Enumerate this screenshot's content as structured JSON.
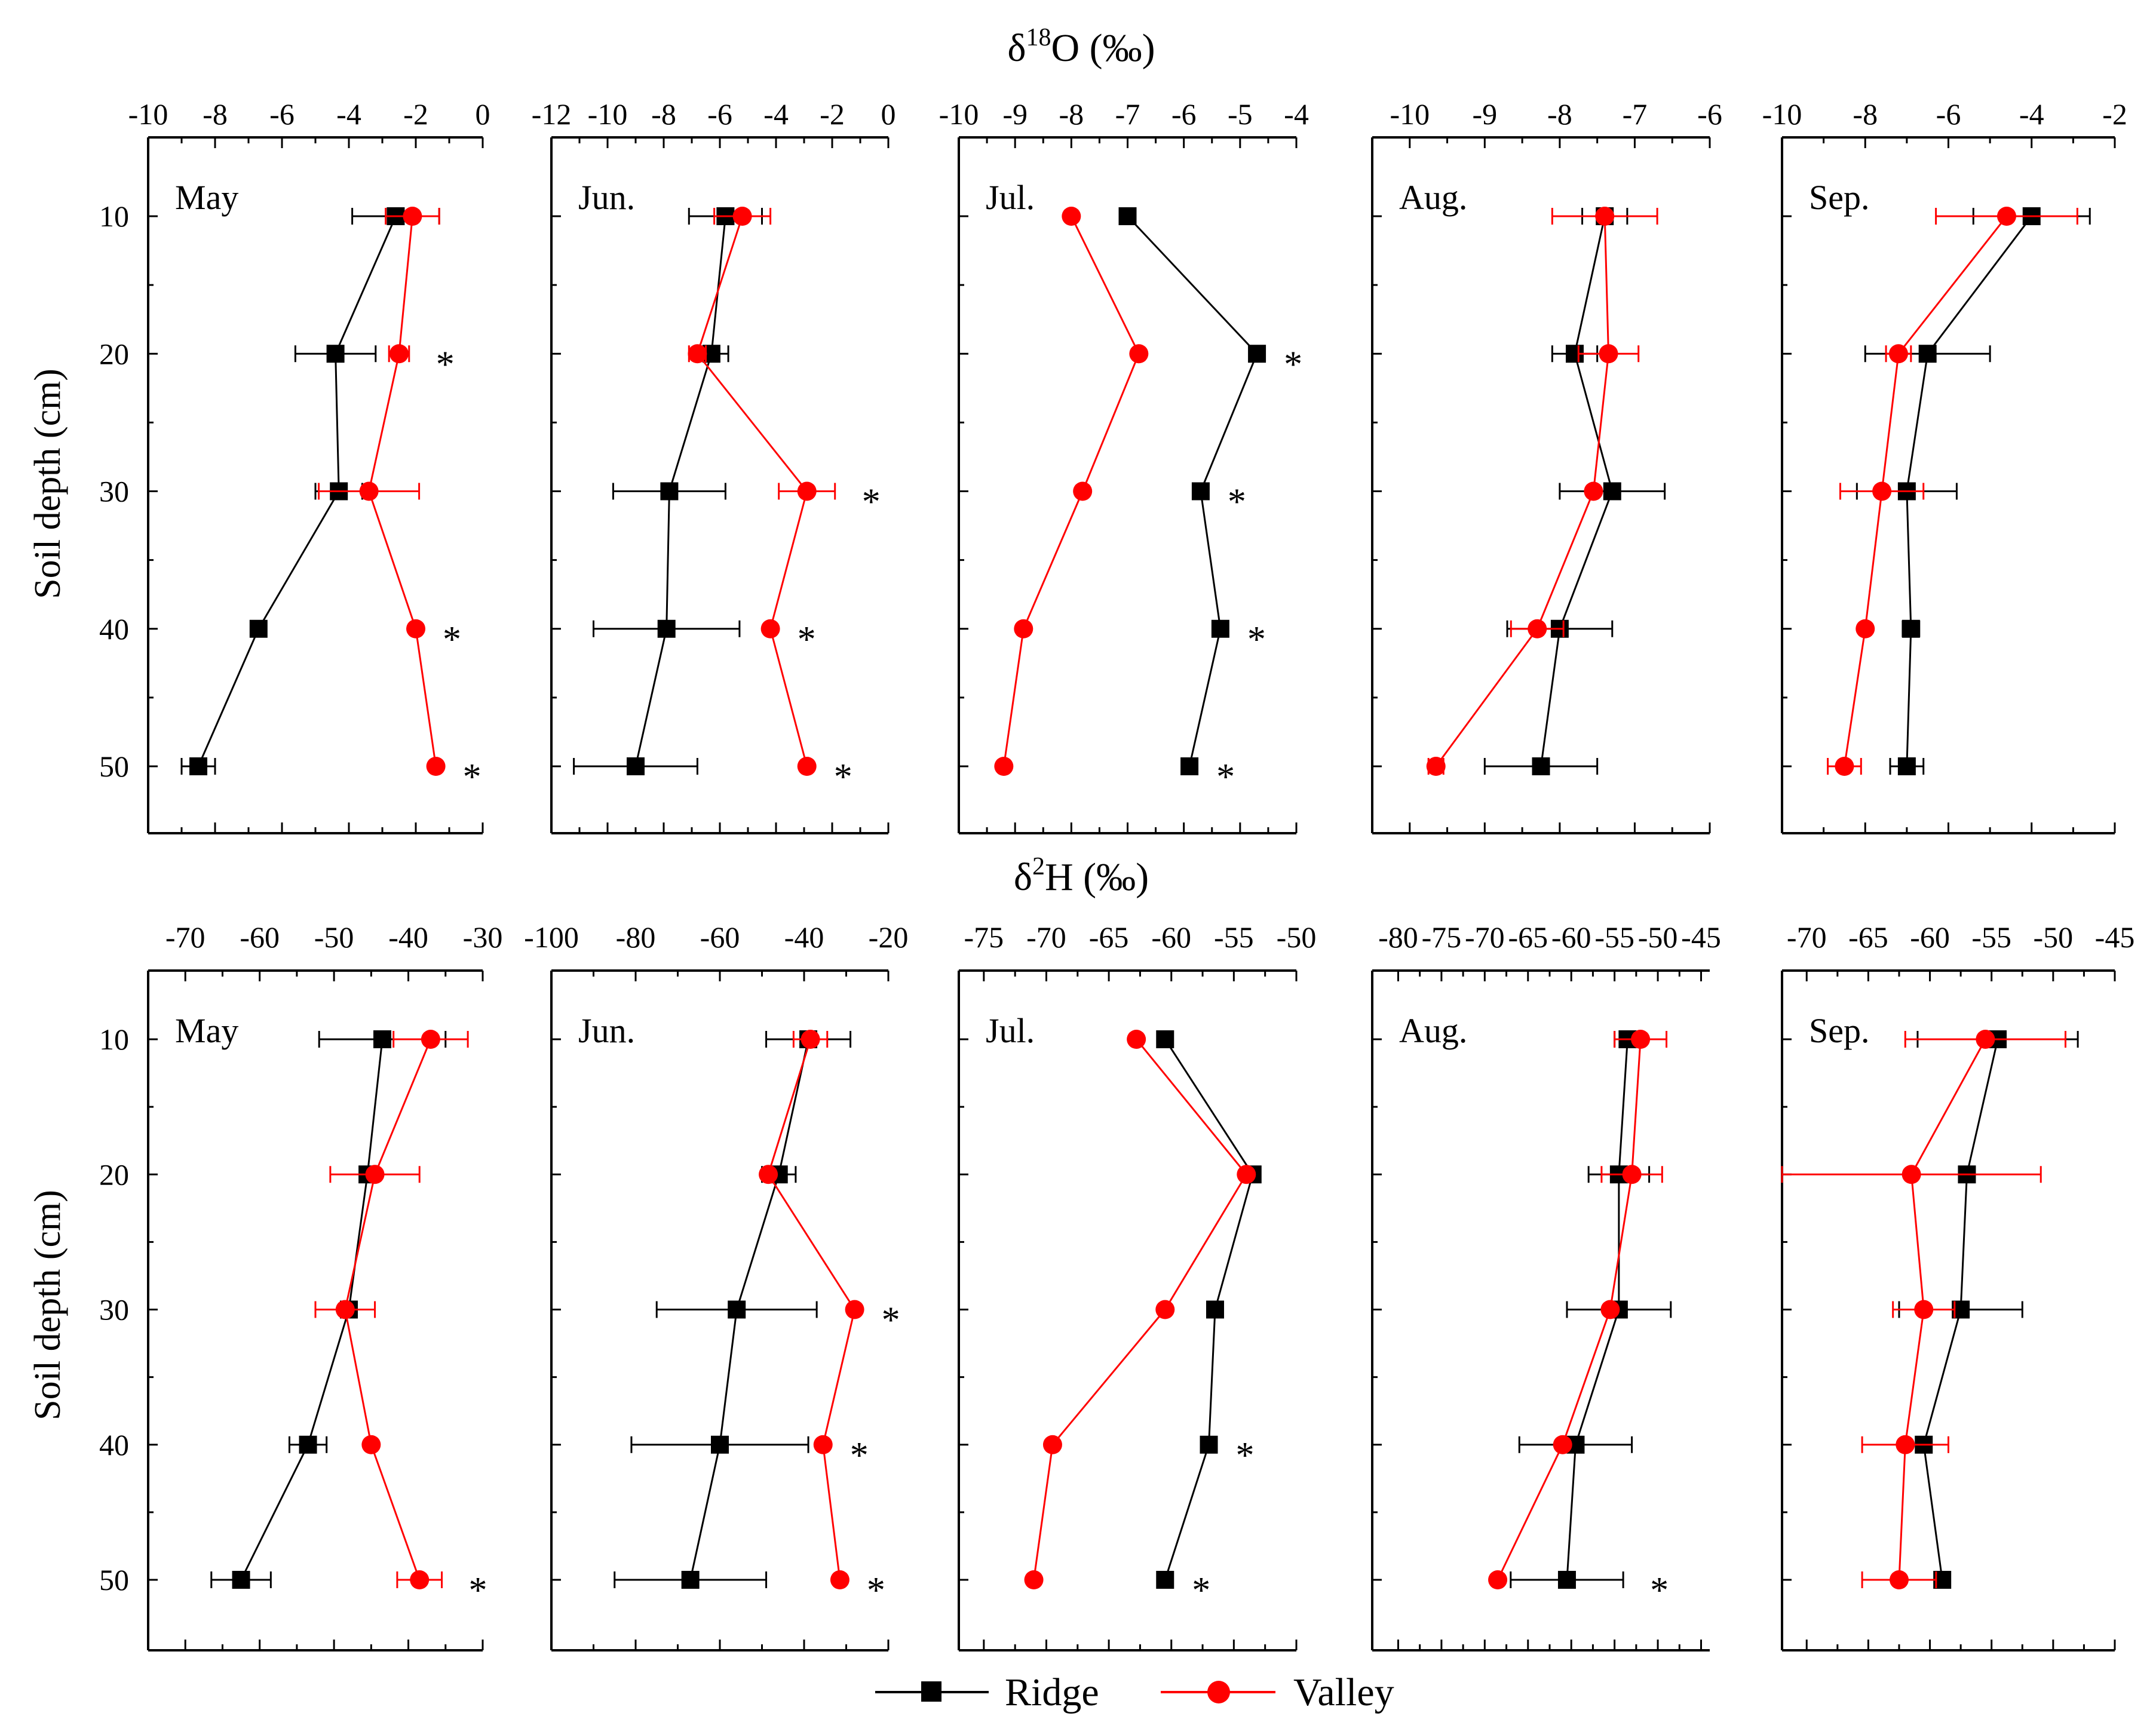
{
  "chart_data": [
    {
      "type": "line-profile-panels",
      "title": "δ18O (‰)",
      "title_parts": {
        "prefix": "δ",
        "sup": "18",
        "suffix": "O (‰)"
      },
      "ylabel": "Soil depth (cm)",
      "depth_ticks": [
        "10",
        "20",
        "30",
        "40",
        "50"
      ],
      "depths": [
        10,
        20,
        30,
        40,
        50
      ],
      "panels": [
        {
          "month": "May",
          "xlim": [
            -10,
            0
          ],
          "xticks": [
            -10,
            -8,
            -6,
            -4,
            -2,
            0
          ],
          "xtick_labels": [
            "-10",
            "-8",
            "-6",
            "-4",
            "-2",
            "0"
          ],
          "ridge": {
            "values": [
              -2.6,
              -4.4,
              -4.3,
              -6.7,
              -8.5
            ],
            "err": [
              1.3,
              1.2,
              0.7,
              0,
              0.5
            ]
          },
          "valley": {
            "values": [
              -2.1,
              -2.5,
              -3.4,
              -2.0,
              -1.4
            ],
            "err": [
              0.8,
              0.3,
              1.5,
              0,
              0
            ]
          },
          "stars": [
            "",
            "*",
            "",
            "*",
            "*"
          ]
        },
        {
          "month": "Jun.",
          "xlim": [
            -12,
            0
          ],
          "xticks": [
            -12,
            -10,
            -8,
            -6,
            -4,
            -2,
            0
          ],
          "xtick_labels": [
            "-12",
            "-10",
            "-8",
            "-6",
            "-4",
            "-2",
            "0"
          ],
          "ridge": {
            "values": [
              -5.8,
              -6.3,
              -7.8,
              -7.9,
              -9.0
            ],
            "err": [
              1.3,
              0.6,
              2.0,
              2.6,
              2.2
            ]
          },
          "valley": {
            "values": [
              -5.2,
              -6.8,
              -2.9,
              -4.2,
              -2.9
            ],
            "err": [
              1.0,
              0.3,
              1.0,
              0,
              0
            ]
          },
          "stars": [
            "",
            "",
            "*",
            "*",
            "*"
          ]
        },
        {
          "month": "Jul.",
          "xlim": [
            -10,
            -4
          ],
          "xticks": [
            -10,
            -9,
            -8,
            -7,
            -6,
            -5,
            -4
          ],
          "xtick_labels": [
            "-10",
            "-9",
            "-8",
            "-7",
            "-6",
            "-5",
            "-4"
          ],
          "ridge": {
            "values": [
              -7.0,
              -4.7,
              -5.7,
              -5.35,
              -5.9
            ],
            "err": [
              0,
              0,
              0,
              0,
              0
            ]
          },
          "valley": {
            "values": [
              -8.0,
              -6.8,
              -7.8,
              -8.85,
              -9.2
            ],
            "err": [
              0,
              0,
              0,
              0,
              0
            ]
          },
          "stars": [
            "",
            "*",
            "*",
            "*",
            "*"
          ]
        },
        {
          "month": "Aug.",
          "xlim": [
            -10.5,
            -6
          ],
          "xticks": [
            -10,
            -9,
            -8,
            -7,
            -6
          ],
          "xtick_labels": [
            "-10",
            "-9",
            "-8",
            "-7",
            "-6"
          ],
          "ridge": {
            "values": [
              -7.4,
              -7.8,
              -7.3,
              -8.0,
              -8.25
            ],
            "err": [
              0.3,
              0.3,
              0.7,
              0.7,
              0.75
            ]
          },
          "valley": {
            "values": [
              -7.4,
              -7.35,
              -7.55,
              -8.3,
              -9.65
            ],
            "err": [
              0.7,
              0.4,
              0,
              0.35,
              0.1
            ]
          },
          "stars": [
            "",
            "",
            "",
            "",
            ""
          ]
        },
        {
          "month": "Sep.",
          "xlim": [
            -10,
            -2
          ],
          "xticks": [
            -10,
            -8,
            -6,
            -4,
            -2
          ],
          "xtick_labels": [
            "-10",
            "-8",
            "-6",
            "-4",
            "-2"
          ],
          "ridge": {
            "values": [
              -4.0,
              -6.5,
              -7.0,
              -6.9,
              -7.0
            ],
            "err": [
              1.4,
              1.5,
              1.2,
              0.2,
              0.4
            ]
          },
          "valley": {
            "values": [
              -4.6,
              -7.2,
              -7.6,
              -8.0,
              -8.5
            ],
            "err": [
              1.7,
              0.3,
              1.0,
              0,
              0.4
            ]
          },
          "stars": [
            "",
            "",
            "",
            "",
            ""
          ]
        }
      ]
    },
    {
      "type": "line-profile-panels",
      "title": "δ2H (‰)",
      "title_parts": {
        "prefix": "δ",
        "sup": "2",
        "suffix": "H (‰)"
      },
      "ylabel": "Soil depth (cm)",
      "depth_ticks": [
        "10",
        "20",
        "30",
        "40",
        "50"
      ],
      "depths": [
        10,
        20,
        30,
        40,
        50
      ],
      "panels": [
        {
          "month": "May",
          "xlim": [
            -75,
            -30
          ],
          "xticks": [
            -70,
            -60,
            -50,
            -40,
            -30
          ],
          "xtick_labels": [
            "-70",
            "-60",
            "-50",
            "-40",
            "-30"
          ],
          "ridge": {
            "values": [
              -43.5,
              -45.5,
              -48.0,
              -53.5,
              -62.5
            ],
            "err": [
              8.5,
              0,
              0,
              2.5,
              4.0
            ]
          },
          "valley": {
            "values": [
              -37.0,
              -44.5,
              -48.5,
              -45.0,
              -38.5
            ],
            "err": [
              5.0,
              6.0,
              4.0,
              0,
              3.0
            ]
          },
          "stars": [
            "",
            "",
            "",
            "",
            "*"
          ]
        },
        {
          "month": "Jun.",
          "xlim": [
            -100,
            -20
          ],
          "xticks": [
            -100,
            -80,
            -60,
            -40,
            -20
          ],
          "xtick_labels": [
            "-100",
            "-80",
            "-60",
            "-40",
            "-20"
          ],
          "ridge": {
            "values": [
              -39.0,
              -46.0,
              -56.0,
              -60.0,
              -67.0
            ],
            "err": [
              10.0,
              4.0,
              19.0,
              21.0,
              18.0
            ]
          },
          "valley": {
            "values": [
              -38.5,
              -48.5,
              -28.0,
              -35.5,
              -31.5
            ],
            "err": [
              4.0,
              0,
              0,
              0,
              0
            ]
          },
          "stars": [
            "",
            "",
            "*",
            "*",
            "*"
          ]
        },
        {
          "month": "Jul.",
          "xlim": [
            -77,
            -50
          ],
          "xticks": [
            -75,
            -70,
            -65,
            -60,
            -55,
            -50
          ],
          "xtick_labels": [
            "-75",
            "-70",
            "-65",
            "-60",
            "-55",
            "-50"
          ],
          "ridge": {
            "values": [
              -60.5,
              -53.5,
              -56.5,
              -57.0,
              -60.5
            ],
            "err": [
              0,
              0,
              0,
              0,
              0
            ]
          },
          "valley": {
            "values": [
              -62.8,
              -54.0,
              -60.5,
              -69.5,
              -71.0
            ],
            "err": [
              0,
              0,
              0,
              0,
              0
            ]
          },
          "stars": [
            "",
            "",
            "",
            "*",
            "*"
          ]
        },
        {
          "month": "Aug.",
          "xlim": [
            -83,
            -44
          ],
          "xticks": [
            -80,
            -75,
            -70,
            -65,
            -60,
            -55,
            -50,
            -45
          ],
          "xtick_labels": [
            "-80",
            "-75",
            "-70",
            "-65",
            "-60",
            "-55",
            "-50",
            "-45"
          ],
          "ridge": {
            "values": [
              -53.5,
              -54.5,
              -54.5,
              -59.5,
              -60.5
            ],
            "err": [
              1.5,
              3.5,
              6.0,
              6.5,
              6.5
            ]
          },
          "valley": {
            "values": [
              -52.0,
              -53.0,
              -55.5,
              -61.0,
              -68.5
            ],
            "err": [
              3.0,
              3.5,
              0,
              0,
              0
            ]
          },
          "stars": [
            "",
            "",
            "",
            "",
            "*"
          ]
        },
        {
          "month": "Sep.",
          "xlim": [
            -72,
            -45
          ],
          "xticks": [
            -70,
            -65,
            -60,
            -55,
            -50,
            -45
          ],
          "xtick_labels": [
            "-70",
            "-65",
            "-60",
            "-55",
            "-50",
            "-45"
          ],
          "ridge": {
            "values": [
              -54.5,
              -57.0,
              -57.5,
              -60.5,
              -59.0
            ],
            "err": [
              6.5,
              0,
              5.0,
              0,
              0
            ]
          },
          "valley": {
            "values": [
              -55.5,
              -61.5,
              -60.5,
              -62.0,
              -62.5
            ],
            "err": [
              6.5,
              10.5,
              2.5,
              3.5,
              3.0
            ]
          },
          "stars": [
            "",
            "",
            "",
            "",
            ""
          ]
        }
      ]
    }
  ],
  "legend": {
    "ridge_label": "Ridge",
    "valley_label": "Valley"
  },
  "colors": {
    "ridge": "#000000",
    "valley": "#ff0000"
  },
  "icons": {
    "ridge_marker": "filled-square",
    "valley_marker": "filled-circle"
  }
}
